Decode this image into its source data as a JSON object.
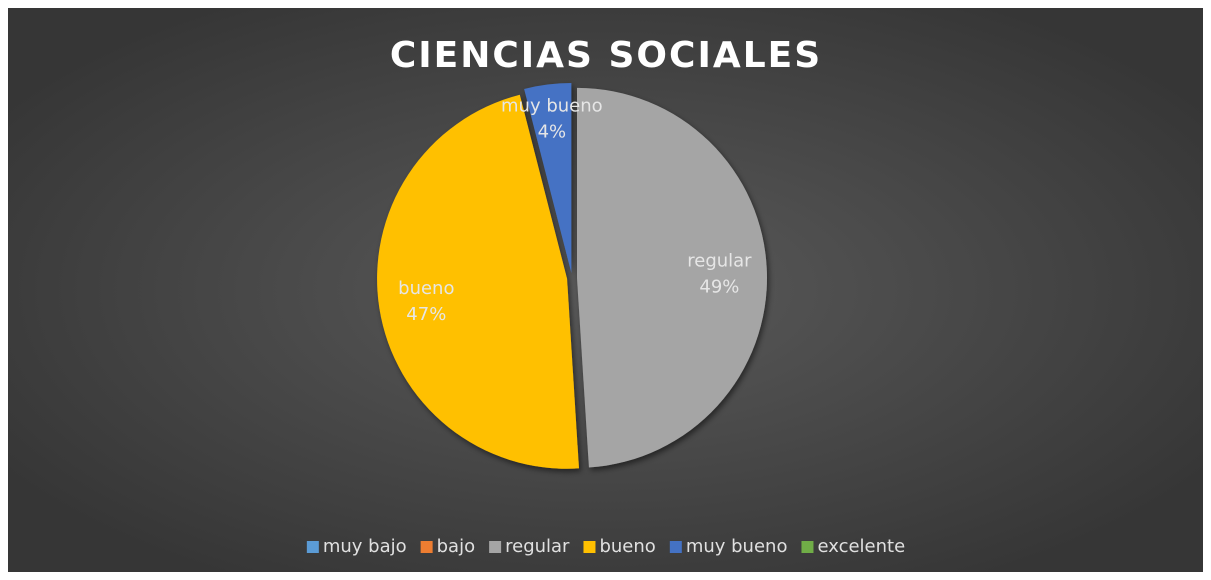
{
  "chart_data": {
    "type": "pie",
    "title": "CIENCIAS SOCIALES",
    "categories": [
      "muy bajo",
      "bajo",
      "regular",
      "bueno",
      "muy bueno",
      "excelente"
    ],
    "values": [
      0,
      0,
      49,
      47,
      4,
      0
    ],
    "value_labels": [
      null,
      null,
      "49%",
      "47%",
      "4%",
      null
    ],
    "colors": [
      "#5b9bd5",
      "#ed7d31",
      "#a5a5a5",
      "#ffc000",
      "#4472c4",
      "#70ad47"
    ],
    "legend": "bottom"
  }
}
